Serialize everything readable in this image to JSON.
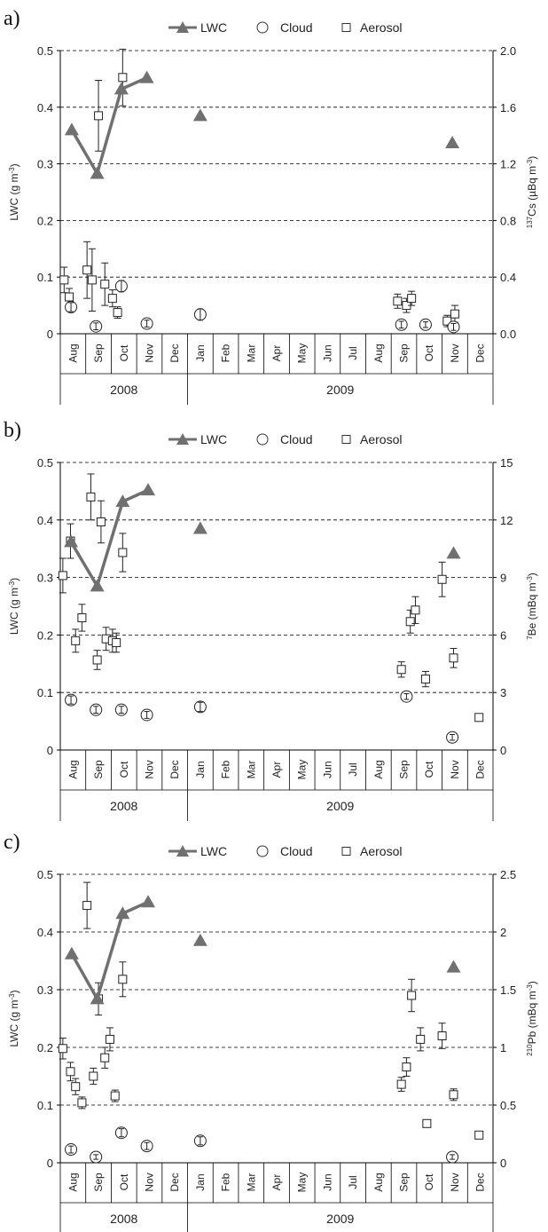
{
  "chart_data": [
    {
      "panel": "a)",
      "type": "scatter",
      "legend": [
        "LWC",
        "Cloud",
        "Aerosol"
      ],
      "legend_position": "top",
      "ylabel_left": [
        "LWC (g m",
        "-3",
        ")"
      ],
      "ylabel_right": [
        "",
        "137",
        "Cs (µBq m",
        "-3",
        ")"
      ],
      "ylim_left": [
        0,
        0.5
      ],
      "yticks_left": [
        "0",
        "0.1",
        "0.2",
        "0.3",
        "0.4",
        "0.5"
      ],
      "ylim_right": [
        0,
        2.0
      ],
      "yticks_right": [
        "0.0",
        "0.4",
        "0.8",
        "1.2",
        "1.6",
        "2.0"
      ],
      "grid": "horizontal dashed",
      "months": [
        "Aug",
        "Sep",
        "Oct",
        "Nov",
        "Dec",
        "Jan",
        "Feb",
        "Mar",
        "Apr",
        "May",
        "Jun",
        "Jul",
        "Aug",
        "Sep",
        "Oct",
        "Nov",
        "Dec"
      ],
      "years": [
        {
          "label": "2008",
          "span": [
            0,
            5
          ]
        },
        {
          "label": "2009",
          "span": [
            5,
            17
          ]
        }
      ],
      "lwc": [
        [
          0.45,
          0.36
        ],
        [
          1.45,
          0.283
        ],
        [
          2.4,
          0.432
        ],
        [
          3.4,
          0.452
        ],
        [
          5.5,
          0.385
        ],
        [
          15.4,
          0.337
        ]
      ],
      "lwc_connected": 4,
      "cloud": [
        [
          0.42,
          0.047,
          0.008
        ],
        [
          1.4,
          0.013,
          0.006
        ],
        [
          2.4,
          0.084,
          0.01
        ],
        [
          3.4,
          0.018,
          0.006
        ],
        [
          5.5,
          0.034,
          0.01
        ],
        [
          13.4,
          0.016,
          0.006
        ],
        [
          14.35,
          0.016,
          0.005
        ],
        [
          15.45,
          0.012,
          0.006
        ]
      ],
      "aerosol": [
        [
          0.15,
          0.38,
          0.09
        ],
        [
          0.35,
          0.26,
          0.06
        ],
        [
          1.05,
          0.45,
          0.2
        ],
        [
          1.25,
          0.38,
          0.22
        ],
        [
          1.5,
          1.54,
          0.25
        ],
        [
          1.75,
          0.35,
          0.15
        ],
        [
          2.05,
          0.25,
          0.06
        ],
        [
          2.25,
          0.15,
          0.04
        ],
        [
          2.45,
          1.81,
          0.2
        ],
        [
          13.25,
          0.23,
          0.05
        ],
        [
          13.6,
          0.2,
          0.05
        ],
        [
          13.8,
          0.25,
          0.05
        ],
        [
          15.2,
          0.09,
          0.04
        ],
        [
          15.5,
          0.14,
          0.06
        ]
      ]
    },
    {
      "panel": "b)",
      "type": "scatter",
      "legend": [
        "LWC",
        "Cloud",
        "Aerosol"
      ],
      "legend_position": "top",
      "ylabel_left": [
        "LWC (g m",
        "-3",
        ")"
      ],
      "ylabel_right": [
        "",
        "7",
        "Be (mBq m",
        "-3",
        ")"
      ],
      "ylim_left": [
        0,
        0.5
      ],
      "yticks_left": [
        "0",
        "0.1",
        "0.2",
        "0.3",
        "0.4",
        "0.5"
      ],
      "ylim_right": [
        0,
        15
      ],
      "yticks_right": [
        "0",
        "3",
        "6",
        "9",
        "12",
        "15"
      ],
      "grid": "horizontal dashed",
      "months": [
        "Aug",
        "Sep",
        "Oct",
        "Nov",
        "Dec",
        "Jan",
        "Feb",
        "Mar",
        "Apr",
        "May",
        "Jun",
        "Jul",
        "Aug",
        "Sep",
        "Oct",
        "Nov",
        "Dec"
      ],
      "years": [
        {
          "label": "2008",
          "span": [
            0,
            5
          ]
        },
        {
          "label": "2009",
          "span": [
            5,
            17
          ]
        }
      ],
      "lwc": [
        [
          0.42,
          0.362
        ],
        [
          1.45,
          0.285
        ],
        [
          2.45,
          0.432
        ],
        [
          3.45,
          0.452
        ],
        [
          5.5,
          0.385
        ],
        [
          15.45,
          0.342
        ]
      ],
      "lwc_connected": 4,
      "cloud": [
        [
          0.42,
          0.087,
          0.007
        ],
        [
          1.4,
          0.07,
          0.006
        ],
        [
          2.4,
          0.07,
          0.006
        ],
        [
          3.4,
          0.061,
          0.006
        ],
        [
          5.5,
          0.075,
          0.008
        ],
        [
          13.6,
          0.093,
          0.005
        ],
        [
          15.4,
          0.022,
          0.005
        ]
      ],
      "aerosol": [
        [
          0.1,
          9.1,
          0.9
        ],
        [
          0.4,
          10.9,
          0.9
        ],
        [
          0.6,
          5.7,
          0.6
        ],
        [
          0.85,
          6.9,
          0.7
        ],
        [
          1.2,
          13.2,
          1.2
        ],
        [
          1.45,
          4.7,
          0.5
        ],
        [
          1.6,
          11.9,
          1.1
        ],
        [
          1.8,
          5.8,
          0.6
        ],
        [
          2.05,
          5.7,
          0.6
        ],
        [
          2.2,
          5.6,
          0.5
        ],
        [
          2.45,
          10.3,
          1.0
        ],
        [
          13.4,
          4.2,
          0.4
        ],
        [
          13.75,
          6.7,
          0.6
        ],
        [
          13.95,
          7.3,
          0.7
        ],
        [
          14.35,
          3.7,
          0.4
        ],
        [
          15.0,
          8.9,
          0.9
        ],
        [
          15.45,
          4.8,
          0.5
        ],
        [
          16.45,
          1.7,
          0.15
        ]
      ]
    },
    {
      "panel": "c)",
      "type": "scatter",
      "legend": [
        "LWC",
        "Cloud",
        "Aerosol"
      ],
      "legend_position": "top",
      "ylabel_left": [
        "LWC (g m",
        "-3",
        ")"
      ],
      "ylabel_right": [
        "",
        "210",
        "Pb (mBq m",
        "-3",
        ")"
      ],
      "ylim_left": [
        0,
        0.5
      ],
      "yticks_left": [
        "0",
        "0.1",
        "0.2",
        "0.3",
        "0.4",
        "0.5"
      ],
      "ylim_right": [
        0,
        2.5
      ],
      "yticks_right": [
        "0",
        "0.5",
        "1",
        "1.5",
        "2",
        "2.5"
      ],
      "grid": "horizontal dashed",
      "months": [
        "Aug",
        "Sep",
        "Oct",
        "Nov",
        "Dec",
        "Jan",
        "Feb",
        "Mar",
        "Apr",
        "May",
        "Jun",
        "Jul",
        "Aug",
        "Sep",
        "Oct",
        "Nov",
        "Dec"
      ],
      "years": [
        {
          "label": "2008",
          "span": [
            0,
            5
          ]
        },
        {
          "label": "2009",
          "span": [
            5,
            17
          ]
        }
      ],
      "lwc": [
        [
          0.45,
          0.362
        ],
        [
          1.45,
          0.284
        ],
        [
          2.45,
          0.432
        ],
        [
          3.45,
          0.452
        ],
        [
          5.5,
          0.385
        ],
        [
          15.45,
          0.339
        ]
      ],
      "lwc_connected": 4,
      "cloud": [
        [
          0.42,
          0.023,
          0.006
        ],
        [
          1.4,
          0.01,
          0.004
        ],
        [
          2.4,
          0.052,
          0.007
        ],
        [
          3.4,
          0.029,
          0.006
        ],
        [
          5.5,
          0.038,
          0.007
        ],
        [
          15.4,
          0.01,
          0.004
        ]
      ],
      "aerosol": [
        [
          0.1,
          0.99,
          0.09
        ],
        [
          0.4,
          0.79,
          0.08
        ],
        [
          0.6,
          0.66,
          0.07
        ],
        [
          0.85,
          0.52,
          0.05
        ],
        [
          1.05,
          2.23,
          0.2
        ],
        [
          1.3,
          0.75,
          0.07
        ],
        [
          1.5,
          1.42,
          0.14
        ],
        [
          1.75,
          0.91,
          0.09
        ],
        [
          1.95,
          1.07,
          0.1
        ],
        [
          2.15,
          0.58,
          0.05
        ],
        [
          2.45,
          1.59,
          0.15
        ],
        [
          13.4,
          0.68,
          0.06
        ],
        [
          13.6,
          0.83,
          0.08
        ],
        [
          13.8,
          1.45,
          0.14
        ],
        [
          14.15,
          1.07,
          0.1
        ],
        [
          14.4,
          0.34,
          0.02
        ],
        [
          15.0,
          1.1,
          0.11
        ],
        [
          15.45,
          0.59,
          0.05
        ],
        [
          16.45,
          0.24,
          0.02
        ]
      ]
    }
  ]
}
